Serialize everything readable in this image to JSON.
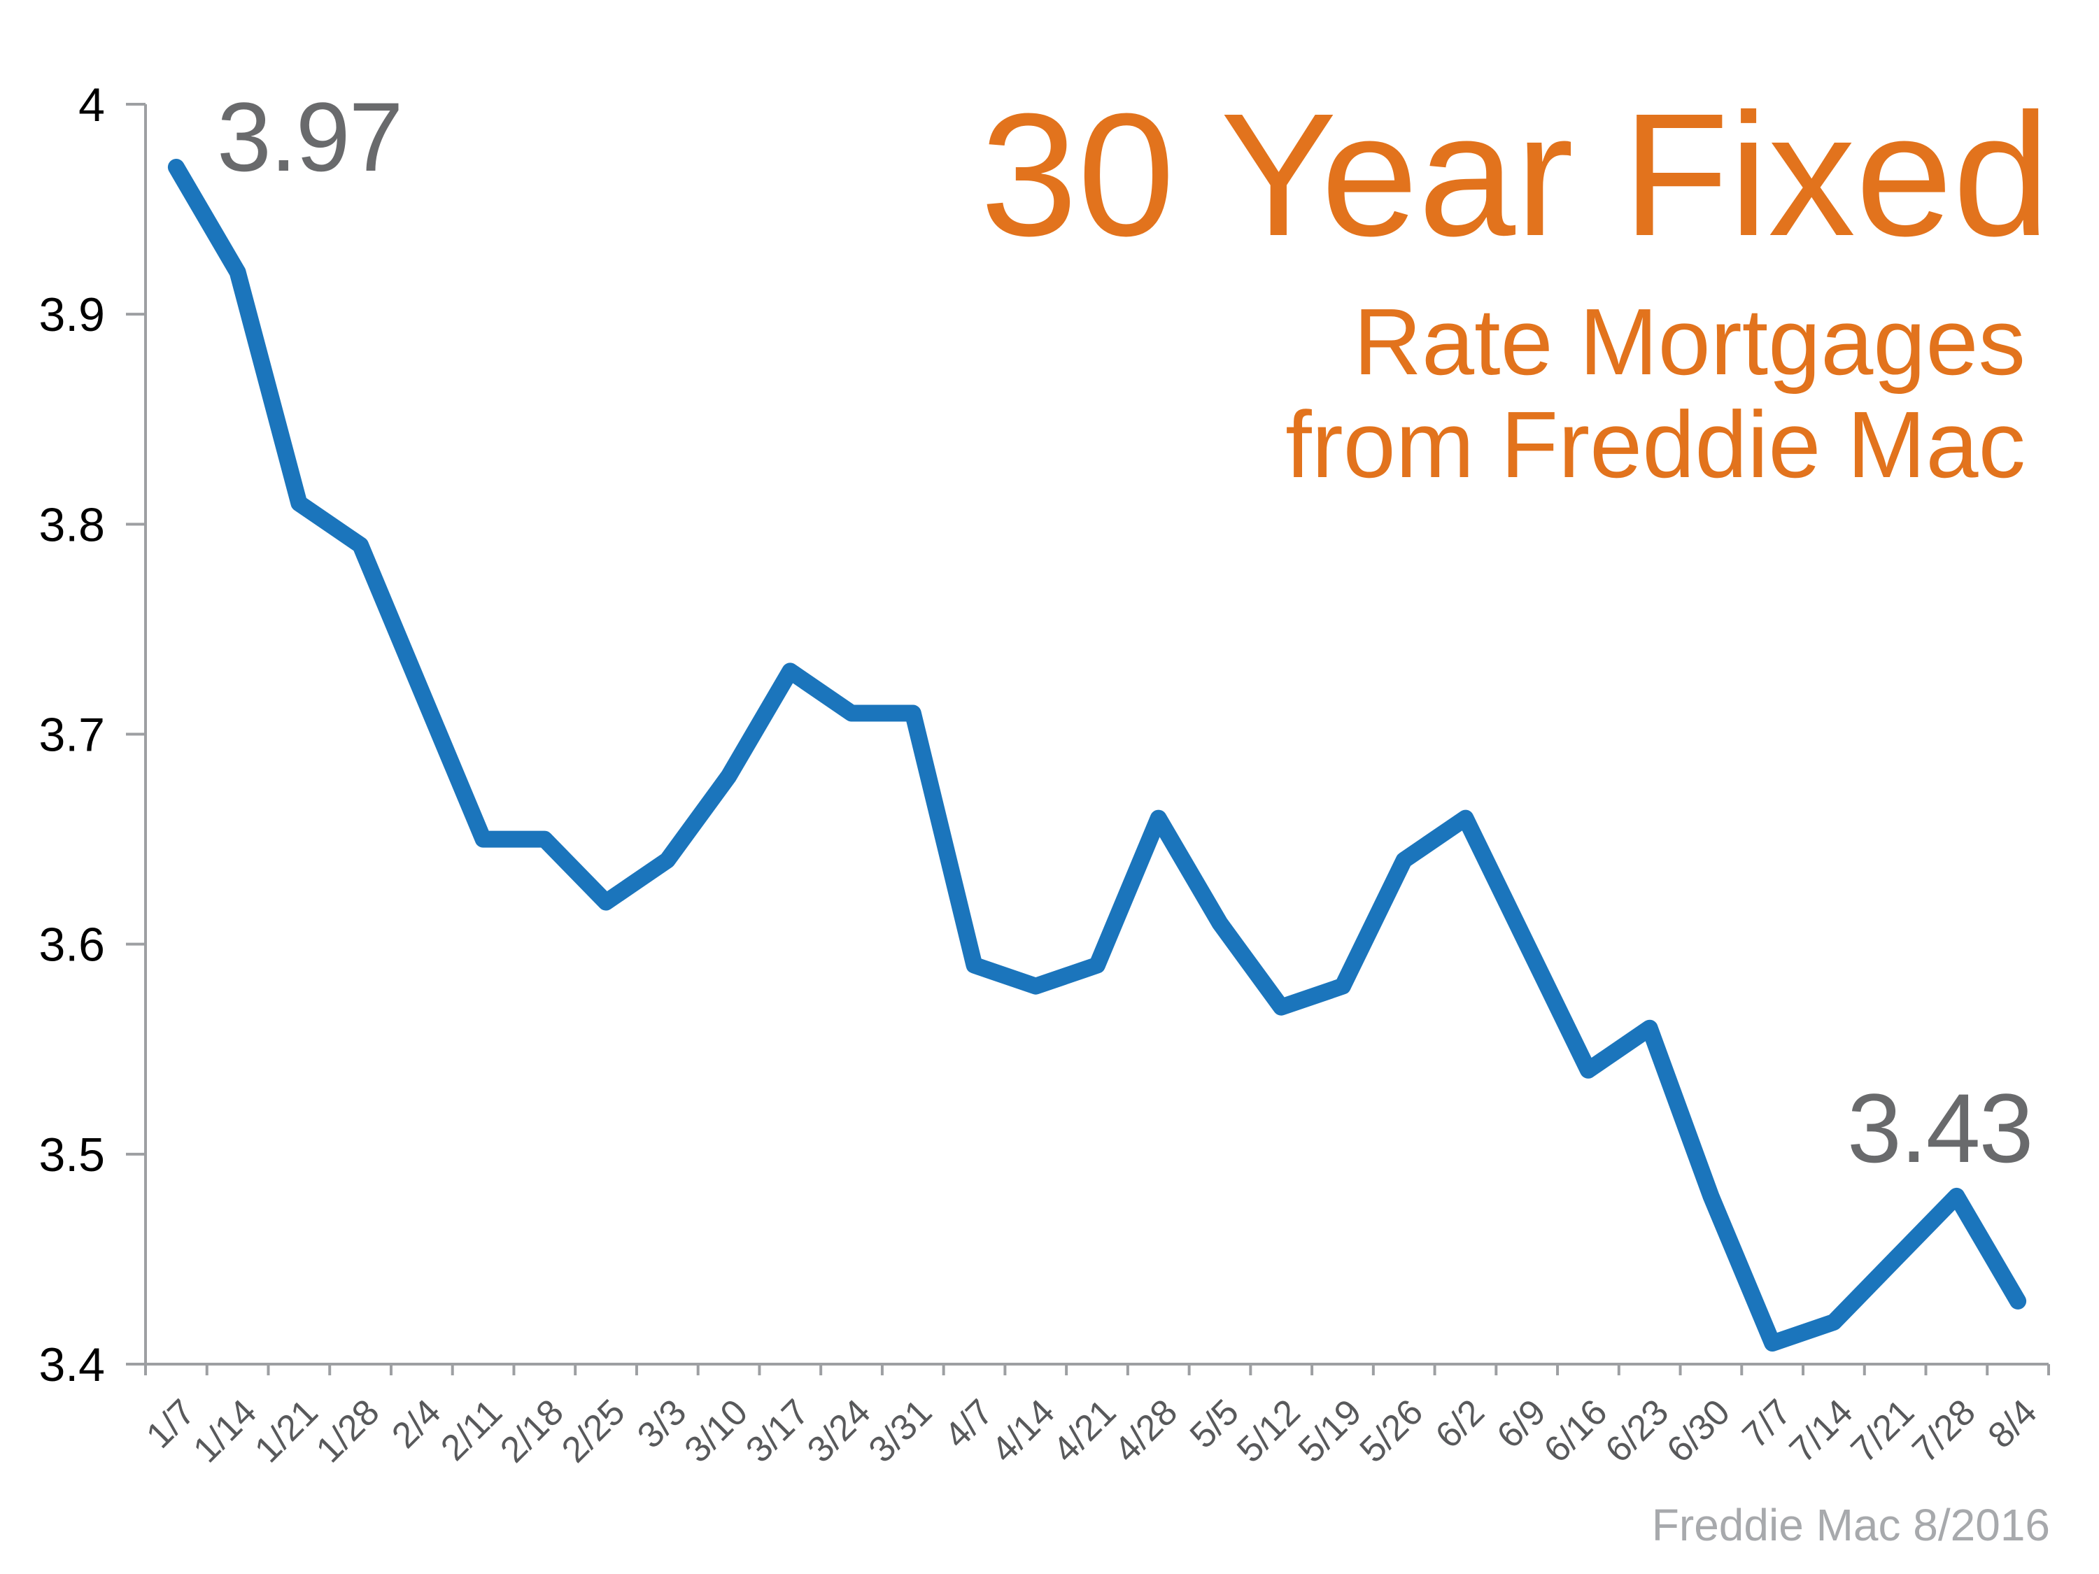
{
  "title": {
    "line1": "30 Year Fixed",
    "line2": "Rate Mortgages",
    "line3": "from Freddie Mac"
  },
  "annotations": {
    "start_value": "3.97",
    "end_value": "3.43"
  },
  "source": "Freddie Mac 8/2016",
  "colors": {
    "accent_orange": "#E2731D",
    "line_blue": "#1B75BC",
    "annotation_gray": "#696A6C",
    "axis_gray": "#9D9FA2",
    "x_label_gray": "#58595B",
    "y_label_black": "#000000",
    "source_gray": "#A7A9AC"
  },
  "chart_data": {
    "type": "line",
    "title": "30 Year Fixed Rate Mortgages from Freddie Mac",
    "categories": [
      "1/7",
      "1/14",
      "1/21",
      "1/28",
      "2/4",
      "2/11",
      "2/18",
      "2/25",
      "3/3",
      "3/10",
      "3/17",
      "3/24",
      "3/31",
      "4/7",
      "4/14",
      "4/21",
      "4/28",
      "5/5",
      "5/12",
      "5/19",
      "5/26",
      "6/2",
      "6/9",
      "6/16",
      "6/23",
      "6/30",
      "7/7",
      "7/14",
      "7/21",
      "7/28",
      "8/4"
    ],
    "values": [
      3.97,
      3.92,
      3.81,
      3.79,
      3.72,
      3.65,
      3.65,
      3.62,
      3.64,
      3.68,
      3.73,
      3.71,
      3.71,
      3.59,
      3.58,
      3.59,
      3.66,
      3.61,
      3.57,
      3.58,
      3.64,
      3.66,
      3.6,
      3.54,
      3.56,
      3.48,
      3.41,
      3.42,
      3.45,
      3.48,
      3.43
    ],
    "xlabel": "",
    "ylabel": "",
    "ylim": [
      3.4,
      4.0
    ],
    "ytick_step": 0.1,
    "ytick_labels": [
      "4",
      "3.9",
      "3.8",
      "3.7",
      "3.6",
      "3.5",
      "3.4"
    ],
    "grid": false,
    "legend": "none",
    "point_annotations": [
      {
        "x": "1/7",
        "y": 3.97,
        "label": "3.97"
      },
      {
        "x": "8/4",
        "y": 3.43,
        "label": "3.43"
      }
    ]
  }
}
